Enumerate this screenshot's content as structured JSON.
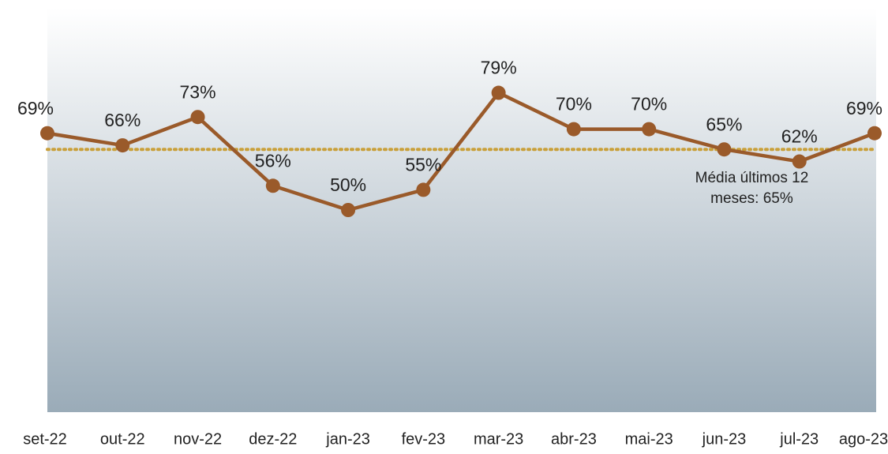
{
  "chart_data": {
    "type": "line",
    "categories": [
      "set-22",
      "out-22",
      "nov-22",
      "dez-22",
      "jan-23",
      "fev-23",
      "mar-23",
      "abr-23",
      "mai-23",
      "jun-23",
      "jul-23",
      "ago-23"
    ],
    "values": [
      69,
      66,
      73,
      56,
      50,
      55,
      79,
      70,
      70,
      65,
      62,
      69
    ],
    "value_labels": [
      "69%",
      "66%",
      "73%",
      "56%",
      "50%",
      "55%",
      "79%",
      "70%",
      "70%",
      "65%",
      "62%",
      "69%"
    ],
    "color": "#9a5a2a",
    "ylim": [
      0,
      100
    ],
    "average": {
      "value": 65,
      "label": "Média últimos 12 meses: 65%",
      "color": "#c9a03a"
    }
  }
}
